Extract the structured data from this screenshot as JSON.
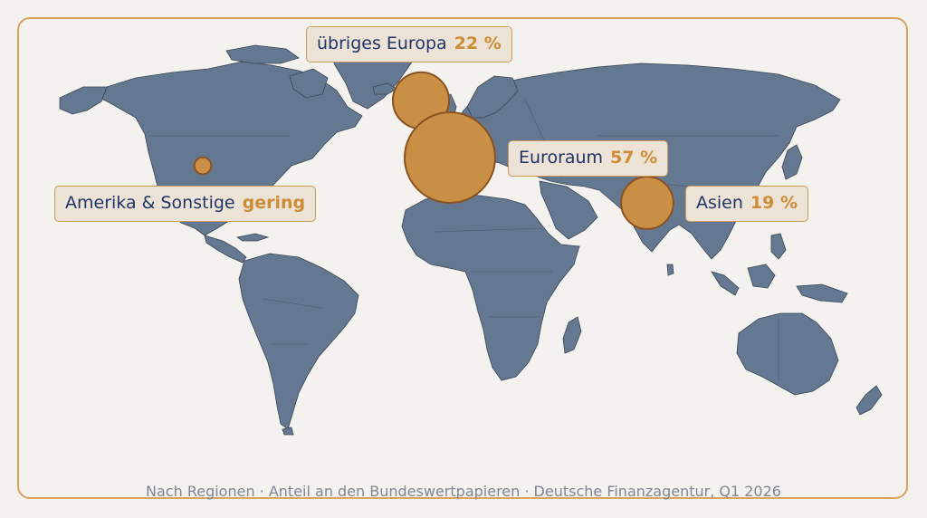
{
  "colors": {
    "land": "#657891",
    "land_edge": "#3a4656",
    "bubble": "#c98f45",
    "bubble_edge": "#8a5220",
    "label_name": "#1f3567",
    "label_value": "#cd8c36"
  },
  "regions": [
    {
      "key": "europa",
      "name": "übriges Europa",
      "value": "22 %",
      "share": 22
    },
    {
      "key": "euroraum",
      "name": "Euroraum",
      "value": "57 %",
      "share": 57
    },
    {
      "key": "asien",
      "name": "Asien",
      "value": "19 %",
      "share": 19
    },
    {
      "key": "amerika",
      "name": "Amerika & Sonstige",
      "value": "gering",
      "share": 2
    }
  ],
  "footer": "Nach Regionen · Anteil an den Bundeswertpapieren · Deutsche Finanzagentur, Q1 2026"
}
